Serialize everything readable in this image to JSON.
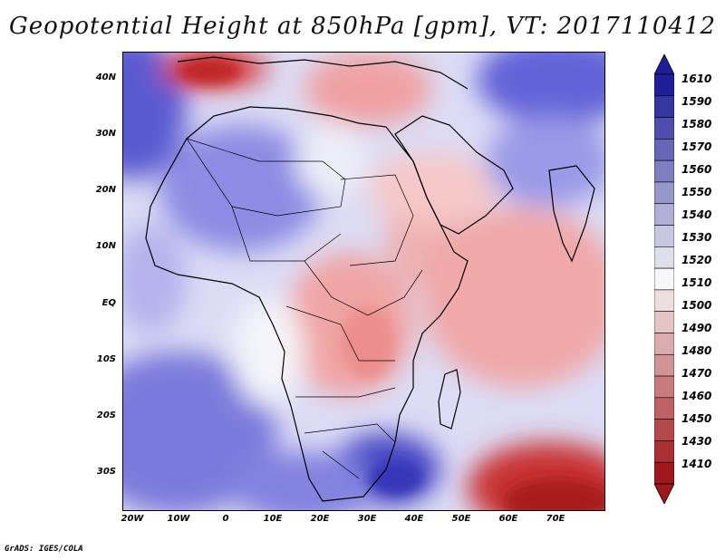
{
  "title": "Geopotential Height at 850hPa [gpm], VT: 2017110412",
  "credit": "GrADS: IGES/COLA",
  "map": {
    "lat_labels": [
      "40N",
      "30N",
      "20N",
      "10N",
      "EQ",
      "10S",
      "20S",
      "30S"
    ],
    "lon_labels": [
      "20W",
      "10W",
      "0",
      "10E",
      "20E",
      "30E",
      "40E",
      "50E",
      "60E",
      "70E"
    ]
  },
  "colorbar": {
    "labels": [
      "1610",
      "1590",
      "1580",
      "1570",
      "1560",
      "1550",
      "1540",
      "1530",
      "1520",
      "1510",
      "1500",
      "1490",
      "1480",
      "1470",
      "1460",
      "1450",
      "1430",
      "1410"
    ],
    "colors": {
      "low": "#a0171c",
      "mid": "#f7f7f7",
      "high": "#1e1e96"
    }
  }
}
